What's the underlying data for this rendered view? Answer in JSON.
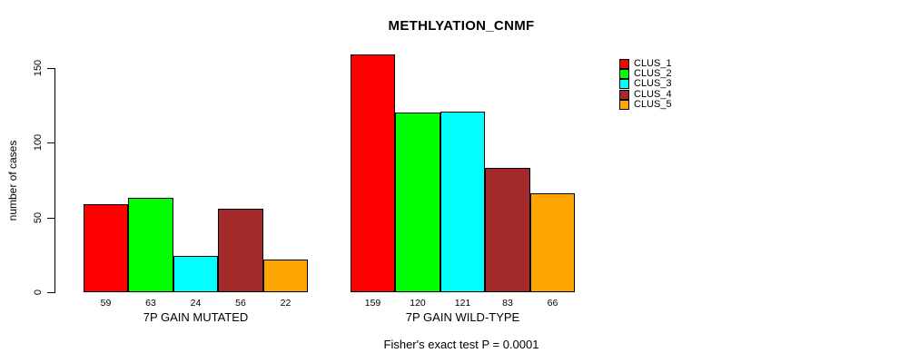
{
  "chart_data": {
    "type": "bar",
    "title": "METHLYATION_CNMF",
    "ylabel": "number of cases",
    "xlabel": "",
    "annotation": "Fisher's exact test P = 0.0001",
    "y_ticks": [
      0,
      50,
      100,
      150
    ],
    "ylim": [
      0,
      160
    ],
    "grid": false,
    "legend_position": "right",
    "show_bar_values": true,
    "categories": [
      "7P GAIN MUTATED",
      "7P GAIN WILD-TYPE"
    ],
    "series": [
      {
        "name": "CLUS_1",
        "color": "#ff0000",
        "values": [
          59,
          159
        ]
      },
      {
        "name": "CLUS_2",
        "color": "#00ff00",
        "values": [
          63,
          120
        ]
      },
      {
        "name": "CLUS_3",
        "color": "#00ffff",
        "values": [
          24,
          121
        ]
      },
      {
        "name": "CLUS_4",
        "color": "#a52a2a",
        "values": [
          56,
          83
        ]
      },
      {
        "name": "CLUS_5",
        "color": "#ffa500",
        "values": [
          22,
          66
        ]
      }
    ],
    "colors": {
      "axis": "#000000",
      "text": "#000000",
      "background": "#ffffff"
    }
  }
}
